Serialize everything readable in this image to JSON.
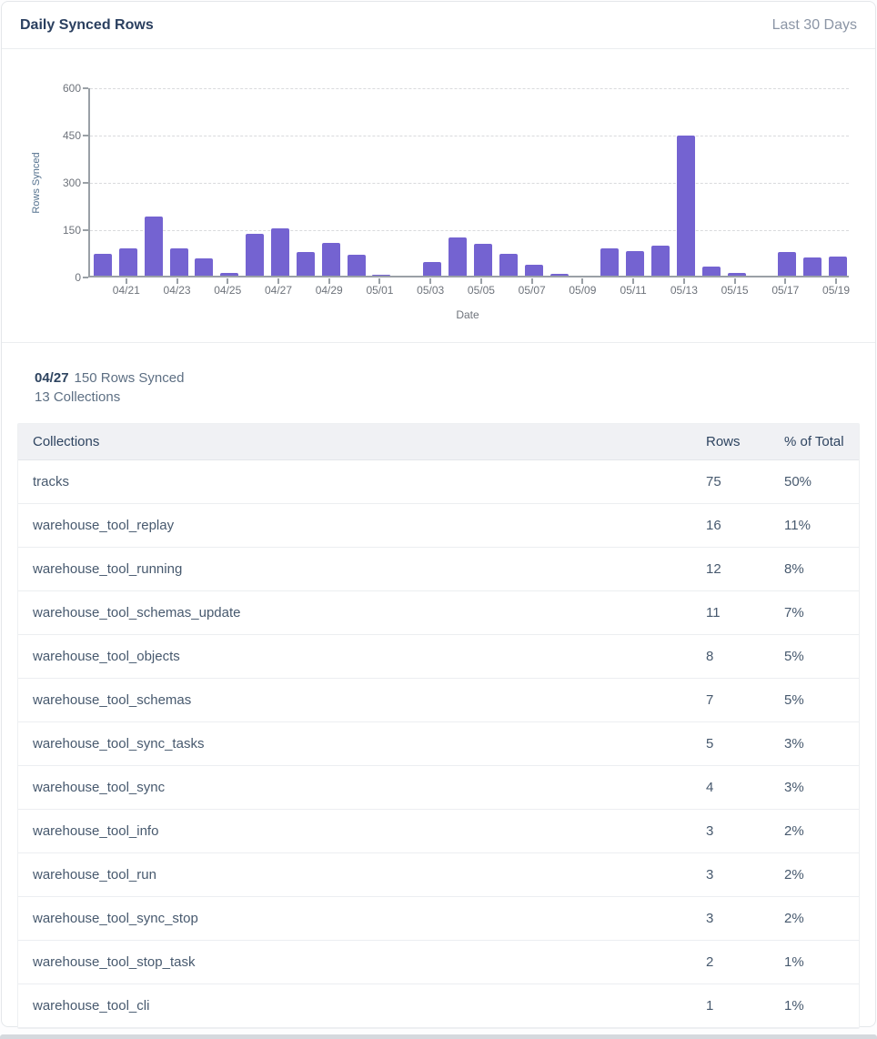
{
  "header": {
    "title": "Daily Synced Rows",
    "range_label": "Last 30 Days"
  },
  "summary": {
    "date": "04/27",
    "rows_text": "150 Rows Synced",
    "collections_text": "13 Collections"
  },
  "table": {
    "columns": [
      "Collections",
      "Rows",
      "% of Total"
    ],
    "rows": [
      {
        "name": "tracks",
        "rows": "75",
        "pct": "50%"
      },
      {
        "name": "warehouse_tool_replay",
        "rows": "16",
        "pct": "11%"
      },
      {
        "name": "warehouse_tool_running",
        "rows": "12",
        "pct": "8%"
      },
      {
        "name": "warehouse_tool_schemas_update",
        "rows": "11",
        "pct": "7%"
      },
      {
        "name": "warehouse_tool_objects",
        "rows": "8",
        "pct": "5%"
      },
      {
        "name": "warehouse_tool_schemas",
        "rows": "7",
        "pct": "5%"
      },
      {
        "name": "warehouse_tool_sync_tasks",
        "rows": "5",
        "pct": "3%"
      },
      {
        "name": "warehouse_tool_sync",
        "rows": "4",
        "pct": "3%"
      },
      {
        "name": "warehouse_tool_info",
        "rows": "3",
        "pct": "2%"
      },
      {
        "name": "warehouse_tool_run",
        "rows": "3",
        "pct": "2%"
      },
      {
        "name": "warehouse_tool_sync_stop",
        "rows": "3",
        "pct": "2%"
      },
      {
        "name": "warehouse_tool_stop_task",
        "rows": "2",
        "pct": "1%"
      },
      {
        "name": "warehouse_tool_cli",
        "rows": "1",
        "pct": "1%"
      }
    ]
  },
  "chart_data": {
    "type": "bar",
    "title": "Daily Synced Rows",
    "xlabel": "Date",
    "ylabel": "Rows Synced",
    "ylim": [
      0,
      600
    ],
    "yticks": [
      0,
      150,
      300,
      450,
      600
    ],
    "grid": "horizontal-dashed",
    "legend": "none",
    "bar_color": "#7463d1",
    "x": [
      "04/20",
      "04/21",
      "04/22",
      "04/23",
      "04/24",
      "04/25",
      "04/26",
      "04/27",
      "04/28",
      "04/29",
      "04/30",
      "05/01",
      "05/02",
      "05/03",
      "05/04",
      "05/05",
      "05/06",
      "05/07",
      "05/08",
      "05/09",
      "05/10",
      "05/11",
      "05/12",
      "05/13",
      "05/14",
      "05/15",
      "05/16",
      "05/17",
      "05/18",
      "05/19"
    ],
    "values": [
      70,
      88,
      187,
      88,
      55,
      10,
      133,
      150,
      75,
      103,
      66,
      2,
      0,
      42,
      120,
      100,
      70,
      35,
      6,
      0,
      86,
      78,
      95,
      445,
      30,
      8,
      0,
      75,
      58,
      60
    ],
    "x_tick_labels": [
      "04/21",
      "04/23",
      "04/25",
      "04/27",
      "04/29",
      "05/01",
      "05/03",
      "05/05",
      "05/07",
      "05/09",
      "05/11",
      "05/13",
      "05/15",
      "05/17",
      "05/19"
    ]
  }
}
